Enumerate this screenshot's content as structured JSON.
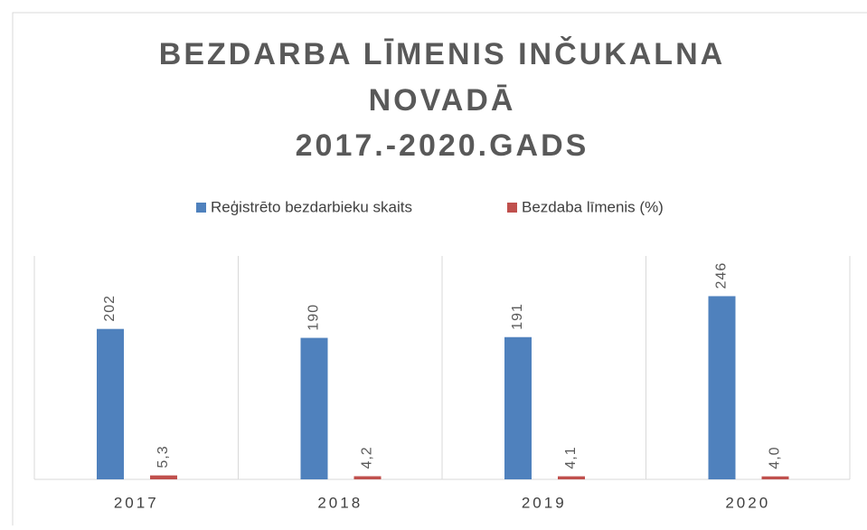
{
  "chart_data": {
    "type": "bar",
    "title": [
      "BEZDARBA LĪMENIS INČUKALNA",
      "NOVADĀ",
      "2017.-2020.GADS"
    ],
    "categories": [
      "2017",
      "2018",
      "2019",
      "2020"
    ],
    "series": [
      {
        "name": "Reģistrēto bezdarbieku skaits",
        "color": "#4f81bd",
        "values": [
          202,
          190,
          191,
          246
        ]
      },
      {
        "name": "Bezdaba līmenis (%)",
        "color": "#c0504d",
        "values": [
          5.3,
          4.2,
          4.1,
          4.0
        ],
        "value_labels": [
          "5,3",
          "4,2",
          "4,1",
          "4,0"
        ]
      }
    ],
    "ylim": [
      0,
      300
    ]
  }
}
